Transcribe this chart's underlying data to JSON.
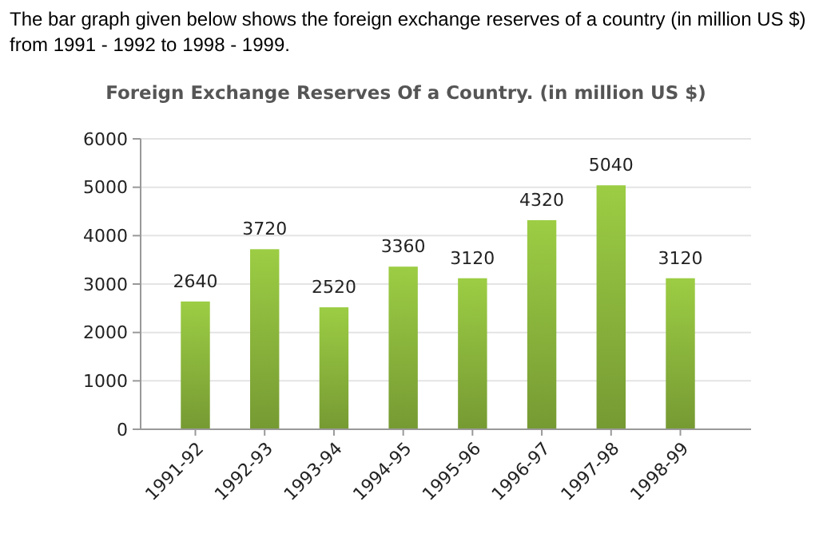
{
  "chart_data": {
    "type": "bar",
    "title": "Foreign Exchange Reserves Of a Country. (in million US $)",
    "annotations": [
      "The bar graph given below shows the foreign exchange reserves of a country (in million US $) from 1991 - 1992 to 1998 - 1999."
    ],
    "categories": [
      "1991-92",
      "1992-93",
      "1993-94",
      "1994-95",
      "1995-96",
      "1996-97",
      "1997-98",
      "1998-99"
    ],
    "values": [
      2640,
      3720,
      2520,
      3360,
      3120,
      4320,
      5040,
      3120
    ],
    "color": "#8ab53c",
    "ylim": [
      0,
      6000
    ],
    "yticks": [
      0,
      1000,
      2000,
      3000,
      4000,
      5000,
      6000
    ],
    "grid": "y",
    "data_labels": true
  }
}
